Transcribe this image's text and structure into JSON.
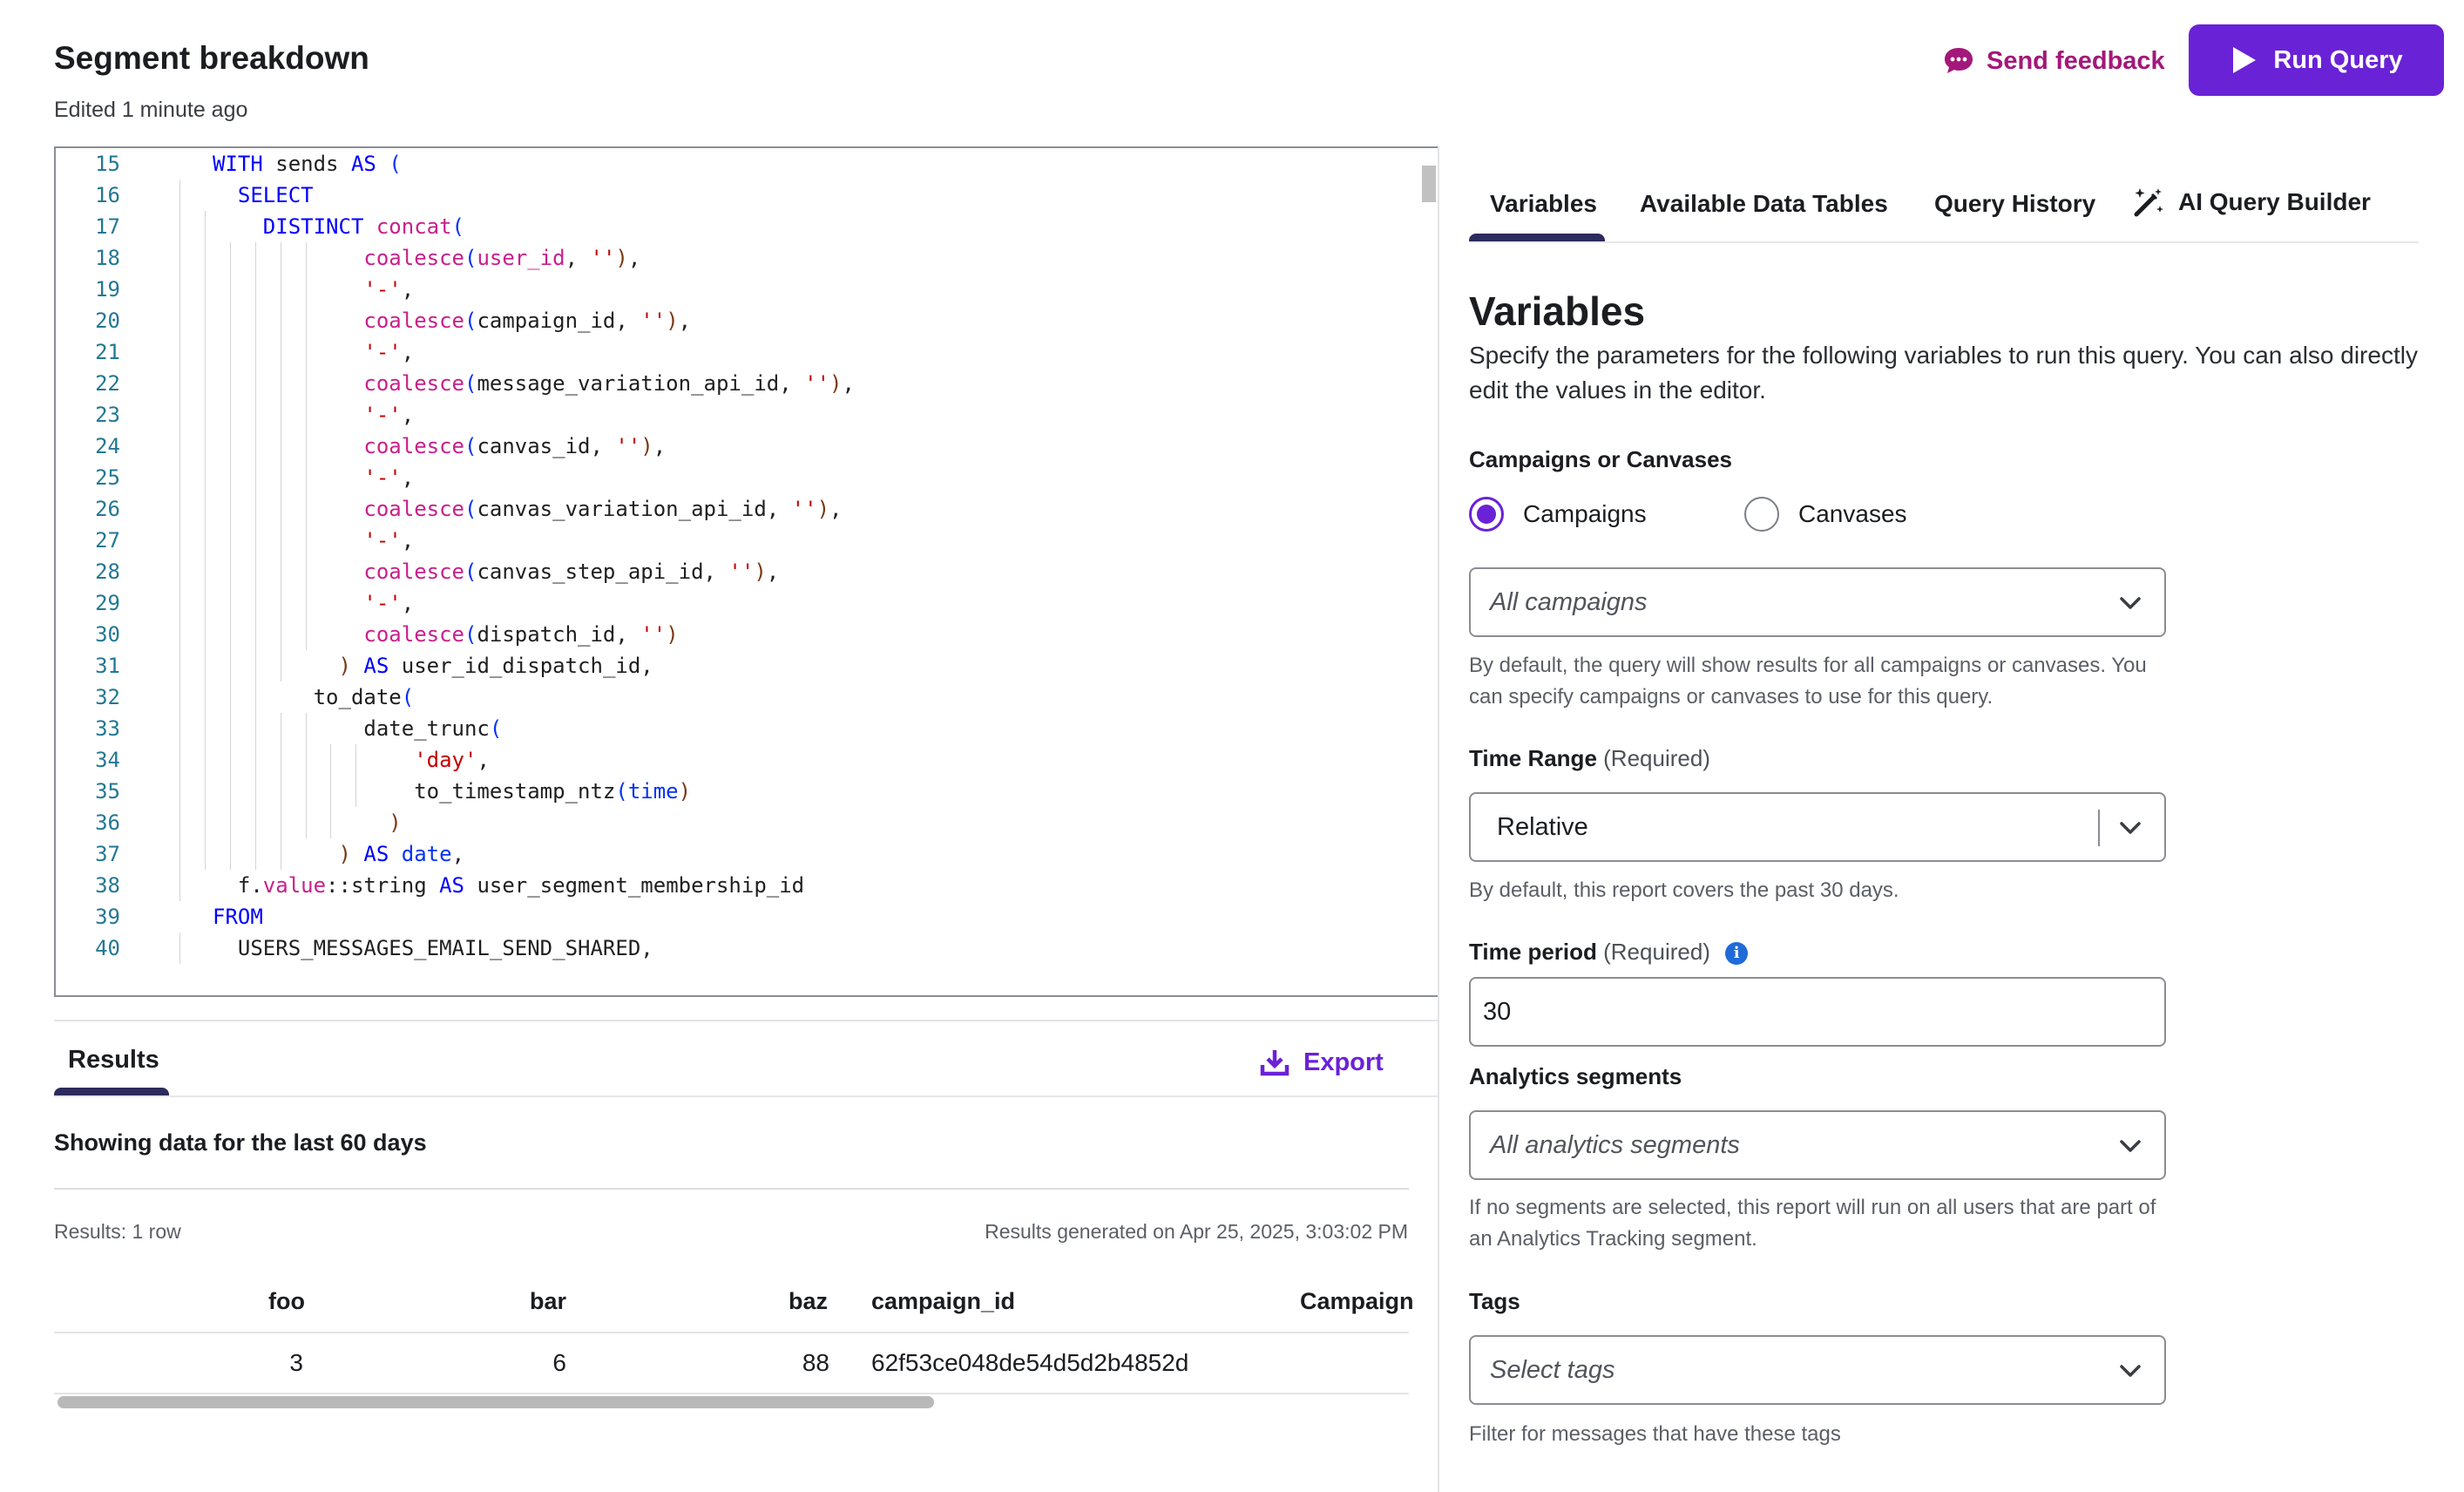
{
  "header": {
    "title": "Segment breakdown",
    "subtitle": "Edited 1 minute ago",
    "feedback_label": "Send feedback",
    "run_label": "Run Query",
    "accent": "#6a22d6",
    "feedback_color": "#a3187a"
  },
  "editor": {
    "line_numbers": [
      "15",
      "16",
      "17",
      "18",
      "19",
      "20",
      "21",
      "22",
      "23",
      "24",
      "25",
      "26",
      "27",
      "28",
      "29",
      "30",
      "31",
      "32",
      "33",
      "34",
      "35",
      "36",
      "37",
      "38",
      "39",
      "40"
    ],
    "lines": [
      "WITH sends AS (",
      "SELECT",
      "DISTINCT concat(",
      "coalesce(user_id, ''),",
      "'-',",
      "coalesce(campaign_id, ''),",
      "'-',",
      "coalesce(message_variation_api_id, ''),",
      "'-',",
      "coalesce(canvas_id, ''),",
      "'-',",
      "coalesce(canvas_variation_api_id, ''),",
      "'-',",
      "coalesce(canvas_step_api_id, ''),",
      "'-',",
      "coalesce(dispatch_id, '')",
      ") AS user_id_dispatch_id,",
      "to_date(",
      "date_trunc(",
      "'day',",
      "to_timestamp_ntz(time)",
      ")",
      ") AS date,",
      "f.value::string AS user_segment_membership_id",
      "FROM",
      "USERS_MESSAGES_EMAIL_SEND_SHARED,"
    ]
  },
  "results": {
    "tab_label": "Results",
    "export_label": "Export",
    "showing": "Showing data for the last 60 days",
    "count": "Results: 1 row",
    "generated": "Results generated on Apr 25, 2025, 3:03:02 PM",
    "columns": [
      "foo",
      "bar",
      "baz",
      "campaign_id",
      "Campaign"
    ],
    "rows": [
      [
        "3",
        "6",
        "88",
        "62f53ce048de54d5d2b4852d",
        ""
      ]
    ]
  },
  "panel": {
    "tabs": [
      "Variables",
      "Available Data Tables",
      "Query History",
      "AI Query Builder"
    ],
    "active_tab": "Variables",
    "title": "Variables",
    "description": "Specify the parameters for the following variables to run this query. You can also directly edit the values in the editor.",
    "campaigns_or_canvases": {
      "label": "Campaigns or Canvases",
      "options": [
        "Campaigns",
        "Canvases"
      ],
      "selected": "Campaigns",
      "select_placeholder": "All campaigns",
      "help": "By default, the query will show results for all campaigns or canvases. You can specify campaigns or canvases to use for this query."
    },
    "time_range": {
      "label": "Time Range",
      "required": "(Required)",
      "value": "Relative",
      "help": "By default, this report covers the past 30 days."
    },
    "time_period": {
      "label": "Time period",
      "required": "(Required)",
      "value": "30"
    },
    "analytics_segments": {
      "label": "Analytics segments",
      "placeholder": "All analytics segments",
      "help": "If no segments are selected, this report will run on all users that are part of an Analytics Tracking segment."
    },
    "tags": {
      "label": "Tags",
      "placeholder": "Select tags",
      "help": "Filter for messages that have these tags"
    }
  }
}
